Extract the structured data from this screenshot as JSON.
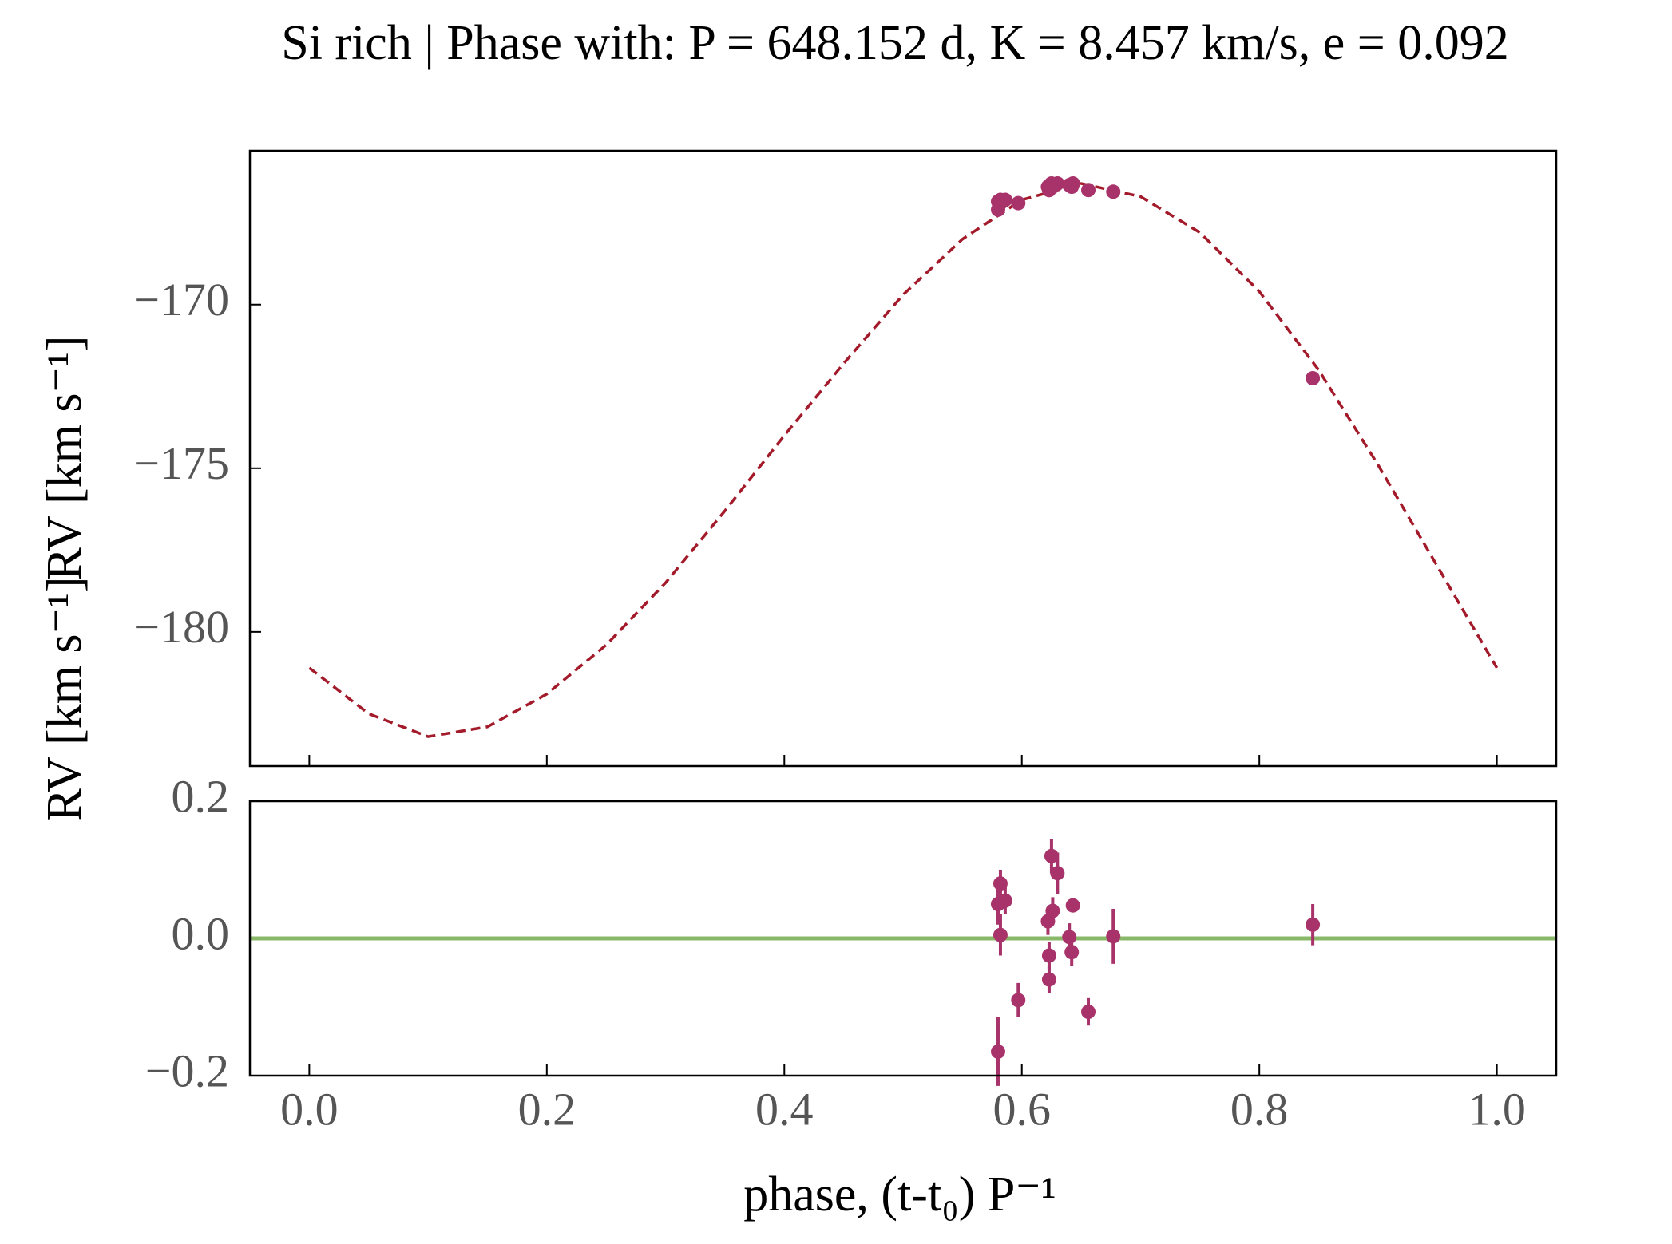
{
  "chart_data": [
    {
      "type": "line",
      "title": "Si rich | Phase with: P = 648.152 d, K = 8.457 km/s, e = 0.092",
      "ylabel": "RV [km s⁻¹]",
      "xlim": [
        -0.05,
        1.05
      ],
      "ylim": [
        -184.1,
        -165.3
      ],
      "yticks": [
        {
          "value": -180,
          "label": "−180"
        },
        {
          "value": -175,
          "label": "−175"
        },
        {
          "value": -170,
          "label": "−170"
        }
      ],
      "model": {
        "color": "#a31a2a",
        "dashed": true,
        "x": [
          0,
          0.05,
          0.1,
          0.15,
          0.2,
          0.25,
          0.3,
          0.35,
          0.4,
          0.45,
          0.5,
          0.55,
          0.6,
          0.65,
          0.7,
          0.75,
          0.8,
          0.85,
          0.9,
          0.95,
          1.0
        ],
        "values": [
          -181.1,
          -182.5,
          -183.2,
          -182.9,
          -181.9,
          -180.4,
          -178.5,
          -176.3,
          -174.0,
          -171.8,
          -169.7,
          -168.0,
          -166.8,
          -166.3,
          -166.7,
          -167.8,
          -169.6,
          -172.0,
          -174.9,
          -178.0,
          -181.1
        ]
      },
      "points": {
        "color": "#a8336a",
        "x": [
          0.58,
          0.58,
          0.582,
          0.582,
          0.586,
          0.597,
          0.622,
          0.623,
          0.623,
          0.625,
          0.626,
          0.63,
          0.64,
          0.642,
          0.643,
          0.656,
          0.677,
          0.845
        ],
        "values": [
          -167.1,
          -166.85,
          -166.8,
          -166.9,
          -166.8,
          -166.9,
          -166.4,
          -166.5,
          -166.5,
          -166.3,
          -166.4,
          -166.3,
          -166.35,
          -166.4,
          -166.3,
          -166.5,
          -166.55,
          -172.25
        ]
      }
    },
    {
      "type": "scatter",
      "ylabel": "RV [km s⁻¹]",
      "xlabel": "phase, (t-t₀) P⁻¹",
      "xlim": [
        -0.05,
        1.05
      ],
      "ylim": [
        -0.2,
        0.2
      ],
      "xticks": [
        {
          "value": 0,
          "label": "0.0"
        },
        {
          "value": 0.2,
          "label": "0.2"
        },
        {
          "value": 0.4,
          "label": "0.4"
        },
        {
          "value": 0.6,
          "label": "0.6"
        },
        {
          "value": 0.8,
          "label": "0.8"
        },
        {
          "value": 1.0,
          "label": "1.0"
        }
      ],
      "yticks": [
        {
          "value": -0.2,
          "label": "−0.2"
        },
        {
          "value": 0,
          "label": "0.0"
        },
        {
          "value": 0.2,
          "label": "0.2"
        }
      ],
      "reference_line": {
        "value": 0,
        "color": "#8ab86a"
      },
      "color": "#a8336a",
      "x": [
        0.58,
        0.58,
        0.582,
        0.582,
        0.586,
        0.597,
        0.622,
        0.623,
        0.623,
        0.625,
        0.626,
        0.63,
        0.64,
        0.642,
        0.643,
        0.656,
        0.677,
        0.845
      ],
      "values": [
        -0.165,
        0.05,
        0.08,
        0.005,
        0.055,
        -0.09,
        0.025,
        -0.025,
        -0.06,
        0.12,
        0.04,
        0.095,
        0.002,
        -0.02,
        0.048,
        -0.107,
        0.003,
        0.02
      ],
      "errors": [
        0.05,
        0.03,
        0.02,
        0.03,
        0.02,
        0.025,
        0.02,
        0.02,
        0.02,
        0.025,
        0.02,
        0.03,
        0.02,
        0.02,
        0.01,
        0.02,
        0.04,
        0.03
      ]
    }
  ]
}
